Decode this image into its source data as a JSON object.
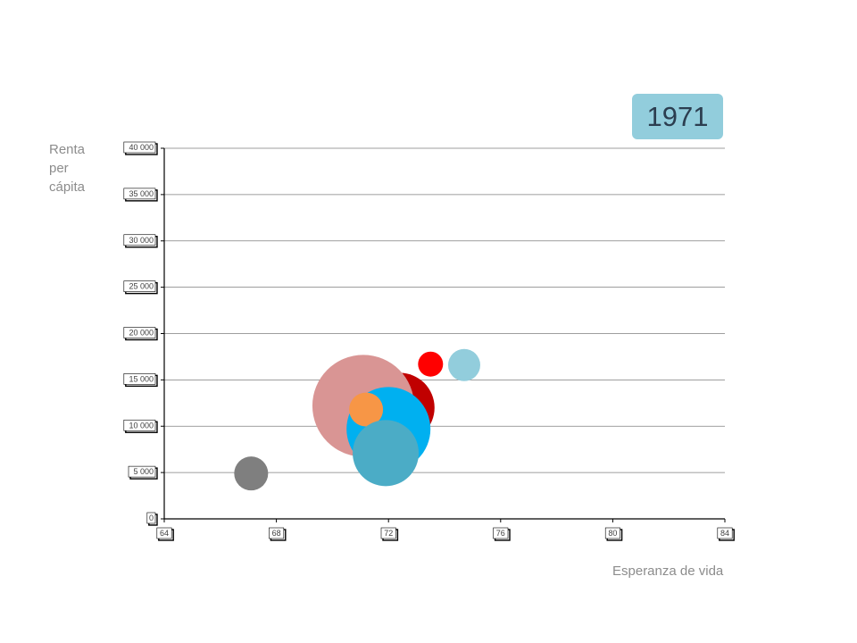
{
  "year": "1971",
  "colors": {
    "badge": "#92cddc",
    "axis": "#000000",
    "grid": "#7f7f7f",
    "label": "#8c8c8c"
  },
  "chart_data": {
    "type": "scatter",
    "title": "",
    "xlabel": "Esperanza de vida",
    "ylabel_lines": [
      "Renta",
      "per",
      "cápita"
    ],
    "xlim": [
      64,
      84
    ],
    "ylim": [
      0,
      40000
    ],
    "x_ticks": [
      64,
      68,
      72,
      76,
      80,
      84
    ],
    "y_ticks": [
      0,
      5000,
      10000,
      15000,
      20000,
      25000,
      30000,
      35000,
      40000
    ],
    "x_tick_labels": [
      "64",
      "68",
      "72",
      "76",
      "80",
      "84"
    ],
    "y_tick_labels": [
      "0",
      "5 000",
      "10 000",
      "15 000",
      "20 000",
      "25 000",
      "30 000",
      "35 000",
      "40 000"
    ],
    "grid": "horizontal",
    "points": [
      {
        "x": 67.1,
        "y": 4900,
        "size": 19,
        "color": "#7f7f7f"
      },
      {
        "x": 72.4,
        "y": 12000,
        "size": 39,
        "color": "#c00000"
      },
      {
        "x": 71.1,
        "y": 12200,
        "size": 57,
        "color": "#d99594"
      },
      {
        "x": 72.0,
        "y": 9700,
        "size": 47,
        "color": "#00b0f0"
      },
      {
        "x": 73.5,
        "y": 16700,
        "size": 14,
        "color": "#ff0000"
      },
      {
        "x": 74.7,
        "y": 16600,
        "size": 18,
        "color": "#92cddc"
      },
      {
        "x": 71.2,
        "y": 11800,
        "size": 19,
        "color": "#f79646"
      },
      {
        "x": 71.9,
        "y": 7100,
        "size": 37,
        "color": "#4bacc6"
      }
    ]
  }
}
